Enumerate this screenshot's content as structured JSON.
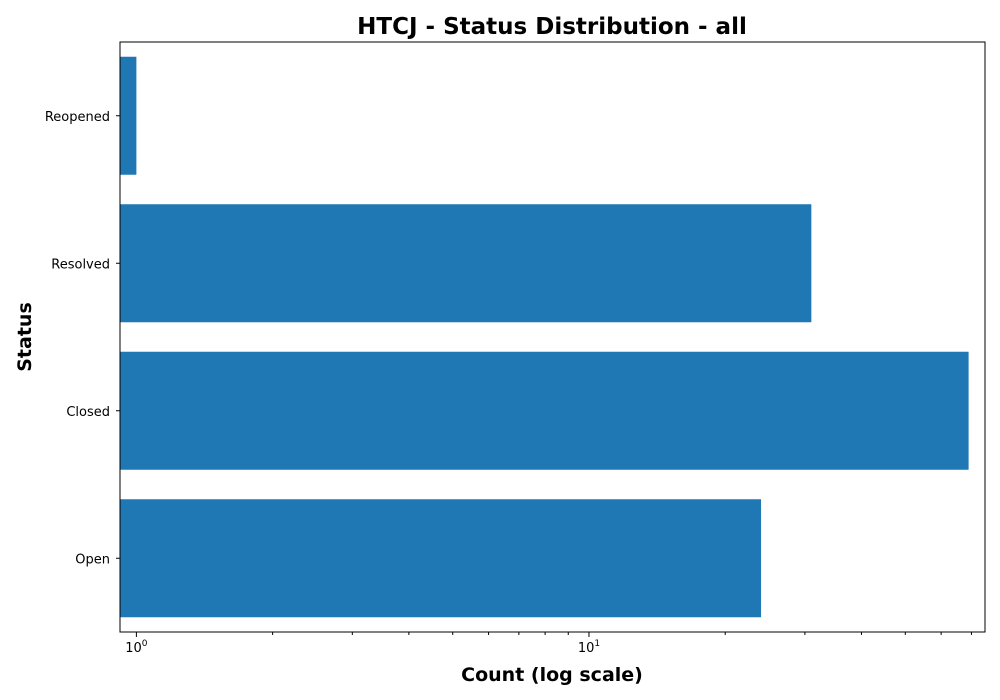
{
  "chart_data": {
    "type": "bar",
    "orientation": "horizontal",
    "title": "HTCJ - Status Distribution - all",
    "xlabel": "Count (log scale)",
    "ylabel": "Status",
    "xscale": "log",
    "xlim": [
      0.92,
      75
    ],
    "categories": [
      "Open",
      "Closed",
      "Resolved",
      "Reopened"
    ],
    "values": [
      24,
      69,
      31,
      1
    ],
    "x_major_ticks": [
      {
        "base": "10",
        "exp": "0",
        "value": 1
      },
      {
        "base": "10",
        "exp": "1",
        "value": 10
      }
    ],
    "x_minor_ticks": [
      2,
      3,
      4,
      5,
      6,
      7,
      8,
      9,
      20,
      30,
      40,
      50,
      60,
      70
    ],
    "bar_color": "#1f77b4",
    "grid": false,
    "legend": "none"
  }
}
